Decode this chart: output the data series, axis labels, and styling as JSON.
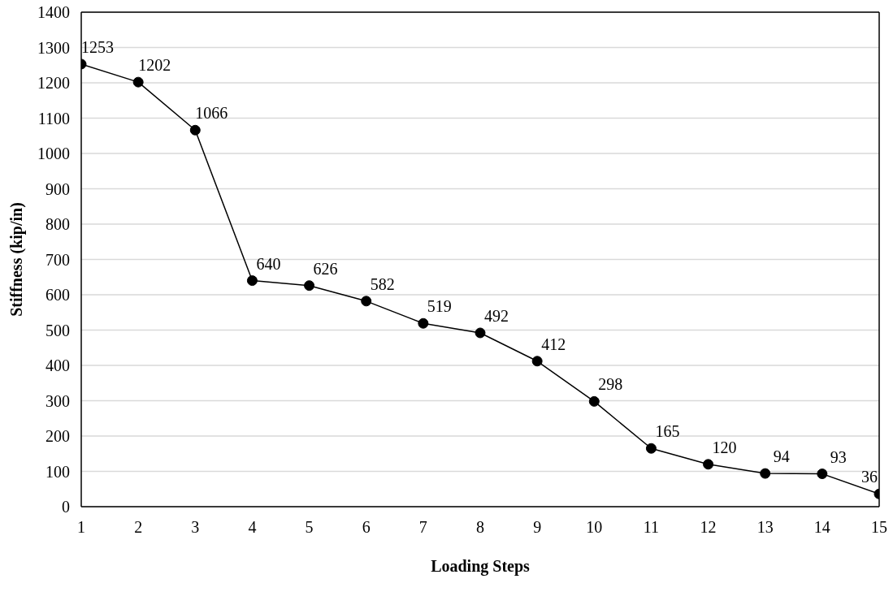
{
  "chart_data": {
    "type": "line",
    "xlabel": "Loading Steps",
    "ylabel": "Stiffness (kip/in)",
    "x": [
      1,
      2,
      3,
      4,
      5,
      6,
      7,
      8,
      9,
      10,
      11,
      12,
      13,
      14,
      15
    ],
    "series": [
      {
        "color": "#000000",
        "values": [
          1253,
          1202,
          1066,
          640,
          626,
          582,
          519,
          492,
          412,
          298,
          165,
          120,
          94,
          93,
          36
        ]
      }
    ],
    "xlim": [
      1,
      15
    ],
    "xticks": [
      1,
      2,
      3,
      4,
      5,
      6,
      7,
      8,
      9,
      10,
      11,
      12,
      13,
      14,
      15
    ],
    "ylim": [
      0,
      1400
    ],
    "yticks": [
      0,
      100,
      200,
      300,
      400,
      500,
      600,
      700,
      800,
      900,
      1000,
      1100,
      1200,
      1300,
      1400
    ],
    "grid": "y",
    "marker": "circle",
    "line_style": "solid",
    "data_labels": true,
    "legend": false
  }
}
